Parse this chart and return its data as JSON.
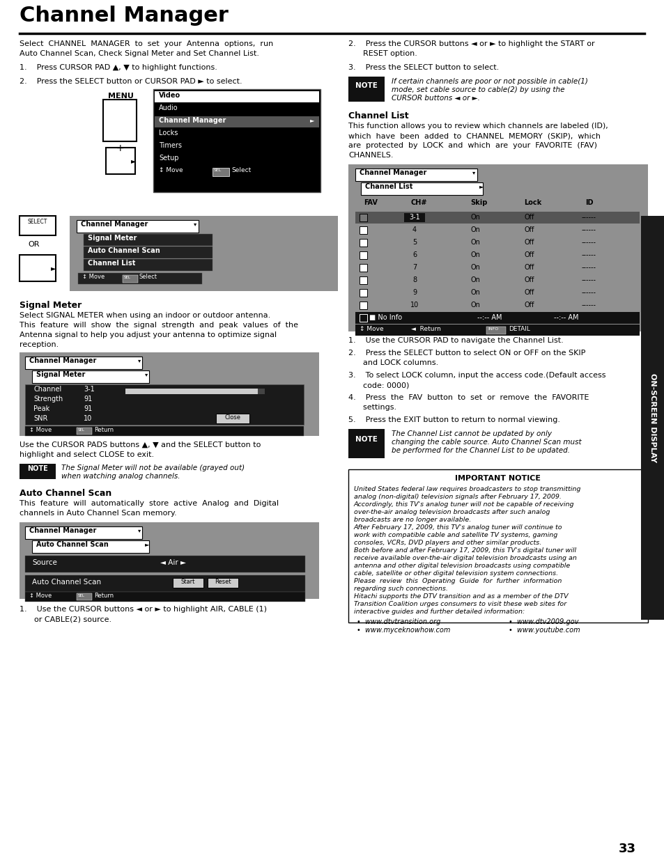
{
  "title": "Channel Manager",
  "bg_color": "#ffffff",
  "page_number": "33",
  "sidebar_text": "ON-SCREEN DISPLAY",
  "sidebar_bg": "#1a1a1a",
  "gray_box": "#888888",
  "dark_row": "#222222",
  "mid_gray": "#aaaaaa"
}
